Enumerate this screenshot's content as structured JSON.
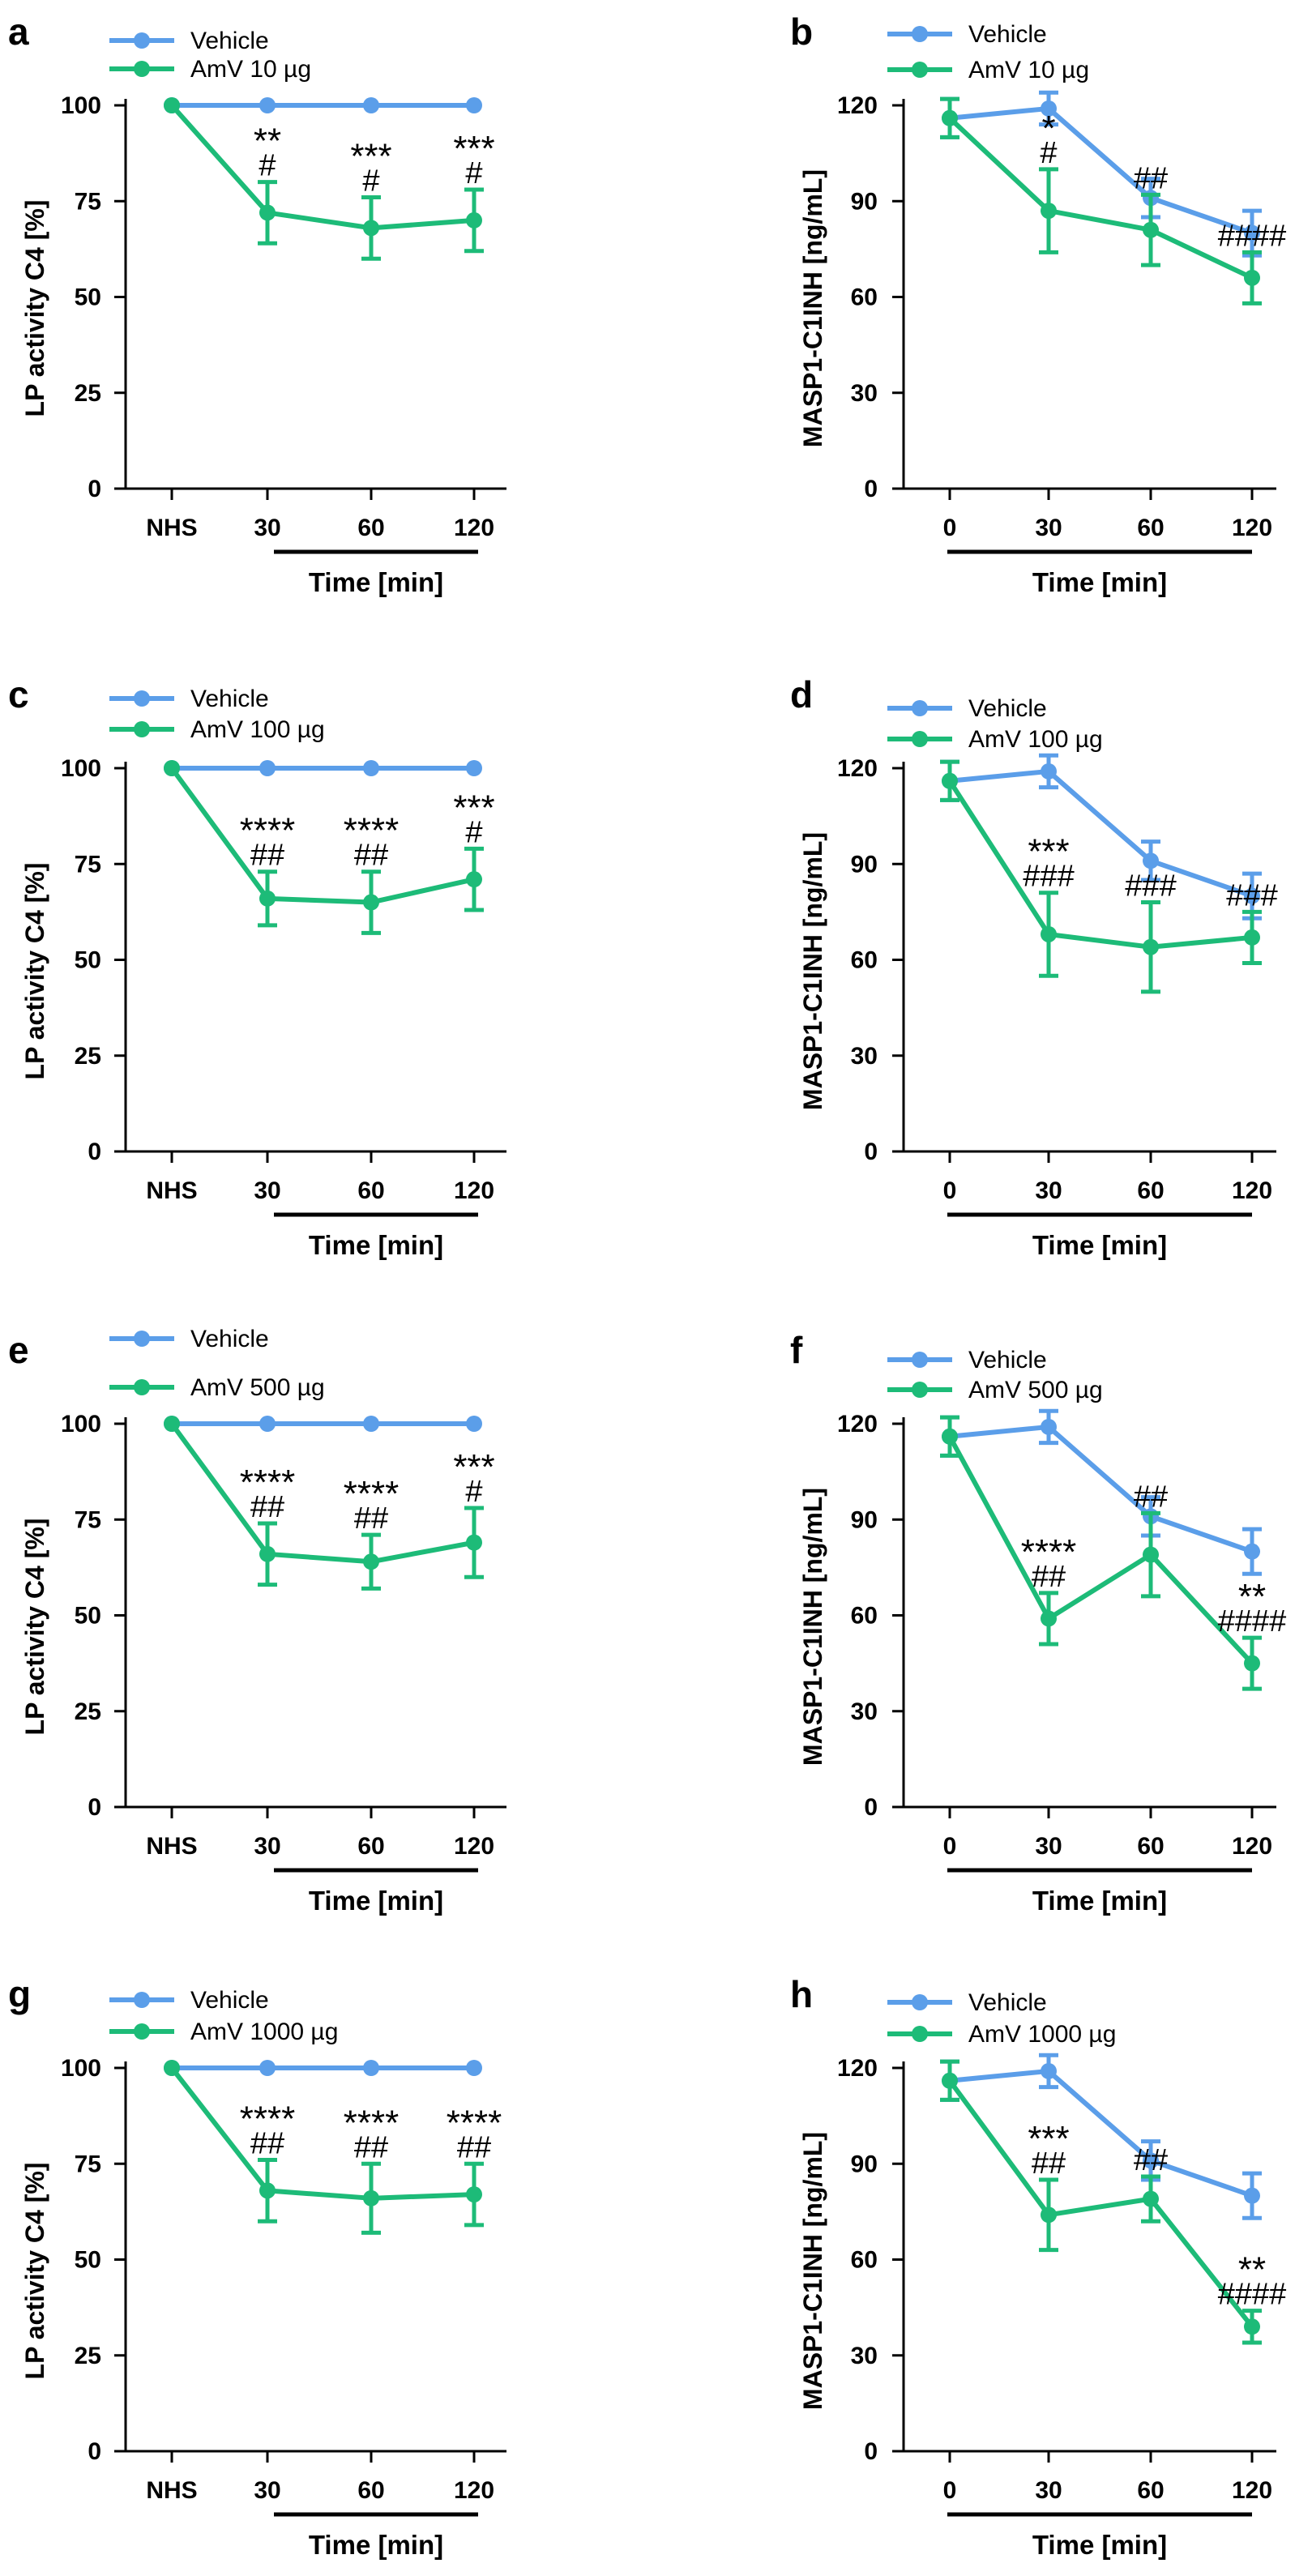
{
  "colors": {
    "vehicle": "#5b9ee9",
    "amv": "#1dbb78",
    "axis": "#000000"
  },
  "chart_data": [
    {
      "panel": "a",
      "type": "line",
      "ylabel": "LP activity C4 [%]",
      "xlabel": "Time [min]",
      "categories": [
        "NHS",
        "30",
        "60",
        "120"
      ],
      "ylim": [
        0,
        100
      ],
      "yticks": [
        0,
        25,
        50,
        75,
        100
      ],
      "legend_placement": "top-left",
      "series": [
        {
          "name": "Vehicle",
          "key": "vehicle",
          "values": [
            100,
            100,
            100,
            100
          ],
          "errors": [
            0,
            0,
            0,
            0
          ]
        },
        {
          "name": "AmV 10 µg",
          "key": "amv",
          "values": [
            100,
            72,
            68,
            70
          ],
          "errors": [
            0,
            8,
            8,
            8
          ]
        }
      ],
      "annotations": [
        {
          "category": 1,
          "stars": "**",
          "hash": "#"
        },
        {
          "category": 2,
          "stars": "***",
          "hash": "#"
        },
        {
          "category": 3,
          "stars": "***",
          "hash": "#"
        }
      ]
    },
    {
      "panel": "b",
      "type": "line",
      "ylabel": "MASP1-C1INH [ng/mL]",
      "xlabel": "Time [min]",
      "categories": [
        "0",
        "30",
        "60",
        "120"
      ],
      "ylim": [
        0,
        120
      ],
      "yticks": [
        0,
        30,
        60,
        90,
        120
      ],
      "legend_placement": "top-left",
      "series": [
        {
          "name": "Vehicle",
          "key": "vehicle",
          "values": [
            116,
            119,
            91,
            80
          ],
          "errors": [
            6,
            5,
            6,
            7
          ]
        },
        {
          "name": "AmV 10 µg",
          "key": "amv",
          "values": [
            116,
            87,
            81,
            66
          ],
          "errors": [
            6,
            13,
            11,
            8
          ]
        }
      ],
      "annotations": [
        {
          "category": 1,
          "stars": "*",
          "hash": "#"
        },
        {
          "category": 2,
          "stars": "",
          "hash": "##"
        },
        {
          "category": 3,
          "stars": "",
          "hash": "####"
        }
      ]
    },
    {
      "panel": "c",
      "type": "line",
      "ylabel": "LP activity C4 [%]",
      "xlabel": "Time [min]",
      "categories": [
        "NHS",
        "30",
        "60",
        "120"
      ],
      "ylim": [
        0,
        100
      ],
      "yticks": [
        0,
        25,
        50,
        75,
        100
      ],
      "legend_placement": "top-left",
      "series": [
        {
          "name": "Vehicle",
          "key": "vehicle",
          "values": [
            100,
            100,
            100,
            100
          ],
          "errors": [
            0,
            0,
            0,
            0
          ]
        },
        {
          "name": "AmV 100 µg",
          "key": "amv",
          "values": [
            100,
            66,
            65,
            71
          ],
          "errors": [
            0,
            7,
            8,
            8
          ]
        }
      ],
      "annotations": [
        {
          "category": 1,
          "stars": "****",
          "hash": "##"
        },
        {
          "category": 2,
          "stars": "****",
          "hash": "##"
        },
        {
          "category": 3,
          "stars": "***",
          "hash": "#"
        }
      ]
    },
    {
      "panel": "d",
      "type": "line",
      "ylabel": "MASP1-C1INH [ng/mL]",
      "xlabel": "Time [min]",
      "categories": [
        "0",
        "30",
        "60",
        "120"
      ],
      "ylim": [
        0,
        120
      ],
      "yticks": [
        0,
        30,
        60,
        90,
        120
      ],
      "legend_placement": "top-left",
      "series": [
        {
          "name": "Vehicle",
          "key": "vehicle",
          "values": [
            116,
            119,
            91,
            80
          ],
          "errors": [
            6,
            5,
            6,
            7
          ]
        },
        {
          "name": "AmV 100 µg",
          "key": "amv",
          "values": [
            116,
            68,
            64,
            67
          ],
          "errors": [
            6,
            13,
            14,
            8
          ]
        }
      ],
      "annotations": [
        {
          "category": 1,
          "stars": "***",
          "hash": "###"
        },
        {
          "category": 2,
          "stars": "",
          "hash": "###"
        },
        {
          "category": 3,
          "stars": "",
          "hash": "###"
        }
      ]
    },
    {
      "panel": "e",
      "type": "line",
      "ylabel": "LP activity C4 [%]",
      "xlabel": "Time [min]",
      "categories": [
        "NHS",
        "30",
        "60",
        "120"
      ],
      "ylim": [
        0,
        100
      ],
      "yticks": [
        0,
        25,
        50,
        75,
        100
      ],
      "legend_placement": "top-left",
      "series": [
        {
          "name": "Vehicle",
          "key": "vehicle",
          "values": [
            100,
            100,
            100,
            100
          ],
          "errors": [
            0,
            0,
            0,
            0
          ]
        },
        {
          "name": "AmV 500 µg",
          "key": "amv",
          "values": [
            100,
            66,
            64,
            69
          ],
          "errors": [
            0,
            8,
            7,
            9
          ]
        }
      ],
      "annotations": [
        {
          "category": 1,
          "stars": "****",
          "hash": "##"
        },
        {
          "category": 2,
          "stars": "****",
          "hash": "##"
        },
        {
          "category": 3,
          "stars": "***",
          "hash": "#"
        }
      ]
    },
    {
      "panel": "f",
      "type": "line",
      "ylabel": "MASP1-C1INH [ng/mL]",
      "xlabel": "Time [min]",
      "categories": [
        "0",
        "30",
        "60",
        "120"
      ],
      "ylim": [
        0,
        120
      ],
      "yticks": [
        0,
        30,
        60,
        90,
        120
      ],
      "legend_placement": "top-left",
      "series": [
        {
          "name": "Vehicle",
          "key": "vehicle",
          "values": [
            116,
            119,
            91,
            80
          ],
          "errors": [
            6,
            5,
            6,
            7
          ]
        },
        {
          "name": "AmV 500 µg",
          "key": "amv",
          "values": [
            116,
            59,
            79,
            45
          ],
          "errors": [
            6,
            8,
            13,
            8
          ]
        }
      ],
      "annotations": [
        {
          "category": 1,
          "stars": "****",
          "hash": "##"
        },
        {
          "category": 2,
          "stars": "",
          "hash": "##"
        },
        {
          "category": 3,
          "stars": "**",
          "hash": "####"
        }
      ]
    },
    {
      "panel": "g",
      "type": "line",
      "ylabel": "LP activity C4 [%]",
      "xlabel": "Time [min]",
      "categories": [
        "NHS",
        "30",
        "60",
        "120"
      ],
      "ylim": [
        0,
        100
      ],
      "yticks": [
        0,
        25,
        50,
        75,
        100
      ],
      "legend_placement": "top-left",
      "series": [
        {
          "name": "Vehicle",
          "key": "vehicle",
          "values": [
            100,
            100,
            100,
            100
          ],
          "errors": [
            0,
            0,
            0,
            0
          ]
        },
        {
          "name": "AmV 1000 µg",
          "key": "amv",
          "values": [
            100,
            68,
            66,
            67
          ],
          "errors": [
            0,
            8,
            9,
            8
          ]
        }
      ],
      "annotations": [
        {
          "category": 1,
          "stars": "****",
          "hash": "##"
        },
        {
          "category": 2,
          "stars": "****",
          "hash": "##"
        },
        {
          "category": 3,
          "stars": "****",
          "hash": "##"
        }
      ]
    },
    {
      "panel": "h",
      "type": "line",
      "ylabel": "MASP1-C1INH [ng/mL]",
      "xlabel": "Time [min]",
      "categories": [
        "0",
        "30",
        "60",
        "120"
      ],
      "ylim": [
        0,
        120
      ],
      "yticks": [
        0,
        30,
        60,
        90,
        120
      ],
      "legend_placement": "top-left",
      "series": [
        {
          "name": "Vehicle",
          "key": "vehicle",
          "values": [
            116,
            119,
            91,
            80
          ],
          "errors": [
            6,
            5,
            6,
            7
          ]
        },
        {
          "name": "AmV 1000 µg",
          "key": "amv",
          "values": [
            116,
            74,
            79,
            39
          ],
          "errors": [
            6,
            11,
            7,
            5
          ]
        }
      ],
      "annotations": [
        {
          "category": 1,
          "stars": "***",
          "hash": "##"
        },
        {
          "category": 2,
          "stars": "",
          "hash": "##"
        },
        {
          "category": 3,
          "stars": "**",
          "hash": "####"
        }
      ]
    }
  ]
}
